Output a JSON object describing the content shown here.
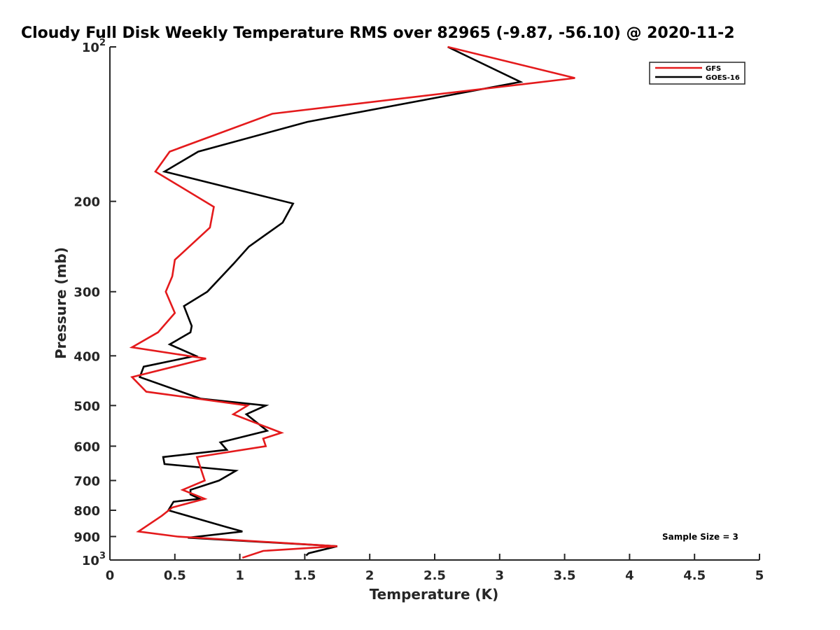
{
  "chart_data": {
    "type": "line",
    "title": "Cloudy Full Disk Weekly Temperature RMS over 82965 (-9.87, -56.10) @ 2020-11-2",
    "xlabel": "Temperature (K)",
    "ylabel": "Pressure (mb)",
    "xlim": [
      0,
      5
    ],
    "ylim": [
      100,
      1000
    ],
    "yscale": "log",
    "y_reversed": true,
    "grid": false,
    "legend_position": "top-right",
    "x_ticks": [
      "0",
      "0.5",
      "1",
      "1.5",
      "2",
      "2.5",
      "3",
      "3.5",
      "4",
      "4.5",
      "5"
    ],
    "x_tick_values": [
      0,
      0.5,
      1,
      1.5,
      2,
      2.5,
      3,
      3.5,
      4,
      4.5,
      5
    ],
    "y_ticks": [
      {
        "value": 100,
        "base": "10",
        "exp": "2"
      },
      {
        "value": 200,
        "label": "200"
      },
      {
        "value": 300,
        "label": "300"
      },
      {
        "value": 400,
        "label": "400"
      },
      {
        "value": 500,
        "label": "500"
      },
      {
        "value": 600,
        "label": "600"
      },
      {
        "value": 700,
        "label": "700"
      },
      {
        "value": 800,
        "label": "800"
      },
      {
        "value": 900,
        "label": "900"
      },
      {
        "value": 1000,
        "base": "10",
        "exp": "3"
      }
    ],
    "annotation": "Sample Size = 3",
    "series": [
      {
        "name": "GFS",
        "color": "#e41a1c",
        "points": [
          [
            2.6,
            100
          ],
          [
            3.58,
            115
          ],
          [
            1.25,
            135
          ],
          [
            0.46,
            160
          ],
          [
            0.35,
            175
          ],
          [
            0.8,
            205
          ],
          [
            0.77,
            225
          ],
          [
            0.5,
            260
          ],
          [
            0.48,
            280
          ],
          [
            0.43,
            300
          ],
          [
            0.5,
            330
          ],
          [
            0.37,
            360
          ],
          [
            0.17,
            385
          ],
          [
            0.74,
            405
          ],
          [
            0.17,
            440
          ],
          [
            0.28,
            470
          ],
          [
            1.06,
            500
          ],
          [
            0.95,
            520
          ],
          [
            1.32,
            565
          ],
          [
            1.18,
            580
          ],
          [
            1.2,
            600
          ],
          [
            0.67,
            630
          ],
          [
            0.73,
            700
          ],
          [
            0.56,
            730
          ],
          [
            0.73,
            760
          ],
          [
            0.48,
            790
          ],
          [
            0.4,
            820
          ],
          [
            0.22,
            880
          ],
          [
            0.52,
            900
          ],
          [
            1.75,
            940
          ],
          [
            1.18,
            960
          ],
          [
            1.02,
            990
          ]
        ]
      },
      {
        "name": "GOES-16",
        "color": "#000000",
        "points": [
          [
            2.6,
            100
          ],
          [
            3.16,
            117
          ],
          [
            1.52,
            140
          ],
          [
            0.68,
            160
          ],
          [
            0.42,
            175
          ],
          [
            1.41,
            202
          ],
          [
            1.33,
            220
          ],
          [
            1.07,
            245
          ],
          [
            0.95,
            265
          ],
          [
            0.75,
            300
          ],
          [
            0.57,
            320
          ],
          [
            0.63,
            350
          ],
          [
            0.62,
            360
          ],
          [
            0.46,
            380
          ],
          [
            0.66,
            400
          ],
          [
            0.26,
            420
          ],
          [
            0.23,
            440
          ],
          [
            0.7,
            485
          ],
          [
            1.2,
            500
          ],
          [
            1.05,
            520
          ],
          [
            1.21,
            560
          ],
          [
            0.85,
            590
          ],
          [
            0.9,
            610
          ],
          [
            0.41,
            630
          ],
          [
            0.42,
            650
          ],
          [
            0.97,
            670
          ],
          [
            0.84,
            700
          ],
          [
            0.62,
            730
          ],
          [
            0.62,
            745
          ],
          [
            0.69,
            760
          ],
          [
            0.49,
            770
          ],
          [
            0.45,
            800
          ],
          [
            0.88,
            860
          ],
          [
            1.02,
            880
          ],
          [
            0.6,
            905
          ],
          [
            1.75,
            940
          ],
          [
            1.53,
            970
          ],
          [
            1.51,
            980
          ]
        ]
      }
    ]
  }
}
